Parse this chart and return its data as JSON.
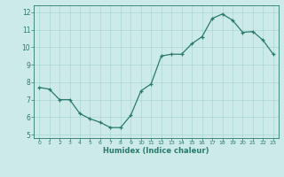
{
  "x": [
    0,
    1,
    2,
    3,
    4,
    5,
    6,
    7,
    8,
    9,
    10,
    11,
    12,
    13,
    14,
    15,
    16,
    17,
    18,
    19,
    20,
    21,
    22,
    23
  ],
  "y": [
    7.7,
    7.6,
    7.0,
    7.0,
    6.2,
    5.9,
    5.7,
    5.4,
    5.4,
    6.1,
    7.5,
    7.9,
    9.5,
    9.6,
    9.6,
    10.2,
    10.6,
    11.65,
    11.9,
    11.55,
    10.85,
    10.9,
    10.4,
    9.6
  ],
  "xlabel": "Humidex (Indice chaleur)",
  "xlim": [
    -0.5,
    23.5
  ],
  "ylim": [
    4.8,
    12.4
  ],
  "yticks": [
    5,
    6,
    7,
    8,
    9,
    10,
    11,
    12
  ],
  "xticks": [
    0,
    1,
    2,
    3,
    4,
    5,
    6,
    7,
    8,
    9,
    10,
    11,
    12,
    13,
    14,
    15,
    16,
    17,
    18,
    19,
    20,
    21,
    22,
    23
  ],
  "line_color": "#2a7a6e",
  "marker_color": "#2a7a6e",
  "bg_color": "#cceae7",
  "grid_color": "#aad6d2",
  "tick_label_color": "#2a7a6e",
  "axis_color": "#2a7a6e",
  "xlabel_color": "#2a7a6e"
}
